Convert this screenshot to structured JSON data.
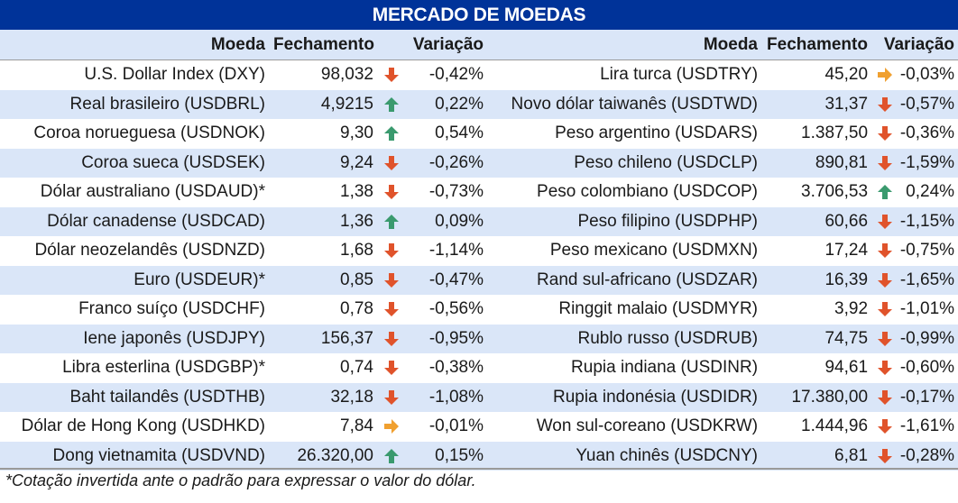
{
  "title": "MERCADO DE MOEDAS",
  "headers": {
    "moeda": "Moeda",
    "fechamento": "Fechamento",
    "variacao": "Variação"
  },
  "colors": {
    "header_bg": "#003399",
    "stripe": "#dae6f8",
    "up": "#3a9a6e",
    "down": "#e0532b",
    "flat": "#f0a030"
  },
  "left": [
    {
      "name": "U.S. Dollar Index (DXY)",
      "close": "98,032",
      "dir": "down",
      "var": "-0,42%"
    },
    {
      "name": "Real brasileiro (USDBRL)",
      "close": "4,9215",
      "dir": "up",
      "var": "0,22%"
    },
    {
      "name": "Coroa norueguesa (USDNOK)",
      "close": "9,30",
      "dir": "up",
      "var": "0,54%"
    },
    {
      "name": "Coroa sueca (USDSEK)",
      "close": "9,24",
      "dir": "down",
      "var": "-0,26%"
    },
    {
      "name": "Dólar australiano (USDAUD)*",
      "close": "1,38",
      "dir": "down",
      "var": "-0,73%"
    },
    {
      "name": "Dólar canadense (USDCAD)",
      "close": "1,36",
      "dir": "up",
      "var": "0,09%"
    },
    {
      "name": "Dólar neozelandês (USDNZD)",
      "close": "1,68",
      "dir": "down",
      "var": "-1,14%"
    },
    {
      "name": "Euro (USDEUR)*",
      "close": "0,85",
      "dir": "down",
      "var": "-0,47%"
    },
    {
      "name": "Franco suíço (USDCHF)",
      "close": "0,78",
      "dir": "down",
      "var": "-0,56%"
    },
    {
      "name": "Iene japonês (USDJPY)",
      "close": "156,37",
      "dir": "down",
      "var": "-0,95%"
    },
    {
      "name": "Libra esterlina (USDGBP)*",
      "close": "0,74",
      "dir": "down",
      "var": "-0,38%"
    },
    {
      "name": "Baht tailandês (USDTHB)",
      "close": "32,18",
      "dir": "down",
      "var": "-1,08%"
    },
    {
      "name": "Dólar de Hong Kong (USDHKD)",
      "close": "7,84",
      "dir": "flat",
      "var": "-0,01%"
    },
    {
      "name": "Dong vietnamita (USDVND)",
      "close": "26.320,00",
      "dir": "up",
      "var": "0,15%"
    }
  ],
  "right": [
    {
      "name": "Lira turca (USDTRY)",
      "close": "45,20",
      "dir": "flat",
      "var": "-0,03%"
    },
    {
      "name": "Novo dólar taiwanês (USDTWD)",
      "close": "31,37",
      "dir": "down",
      "var": "-0,57%"
    },
    {
      "name": "Peso argentino (USDARS)",
      "close": "1.387,50",
      "dir": "down",
      "var": "-0,36%"
    },
    {
      "name": "Peso chileno (USDCLP)",
      "close": "890,81",
      "dir": "down",
      "var": "-1,59%"
    },
    {
      "name": "Peso colombiano (USDCOP)",
      "close": "3.706,53",
      "dir": "up",
      "var": "0,24%"
    },
    {
      "name": "Peso filipino (USDPHP)",
      "close": "60,66",
      "dir": "down",
      "var": "-1,15%"
    },
    {
      "name": "Peso mexicano (USDMXN)",
      "close": "17,24",
      "dir": "down",
      "var": "-0,75%"
    },
    {
      "name": "Rand sul-africano (USDZAR)",
      "close": "16,39",
      "dir": "down",
      "var": "-1,65%"
    },
    {
      "name": "Ringgit malaio (USDMYR)",
      "close": "3,92",
      "dir": "down",
      "var": "-1,01%"
    },
    {
      "name": "Rublo russo (USDRUB)",
      "close": "74,75",
      "dir": "down",
      "var": "-0,99%"
    },
    {
      "name": "Rupia indiana (USDINR)",
      "close": "94,61",
      "dir": "down",
      "var": "-0,60%"
    },
    {
      "name": "Rupia indonésia (USDIDR)",
      "close": "17.380,00",
      "dir": "down",
      "var": "-0,17%"
    },
    {
      "name": "Won sul-coreano (USDKRW)",
      "close": "1.444,96",
      "dir": "down",
      "var": "-1,61%"
    },
    {
      "name": "Yuan chinês (USDCNY)",
      "close": "6,81",
      "dir": "down",
      "var": "-0,28%"
    }
  ],
  "footnote": "*Cotação invertida ante o padrão para expressar o valor do dólar."
}
